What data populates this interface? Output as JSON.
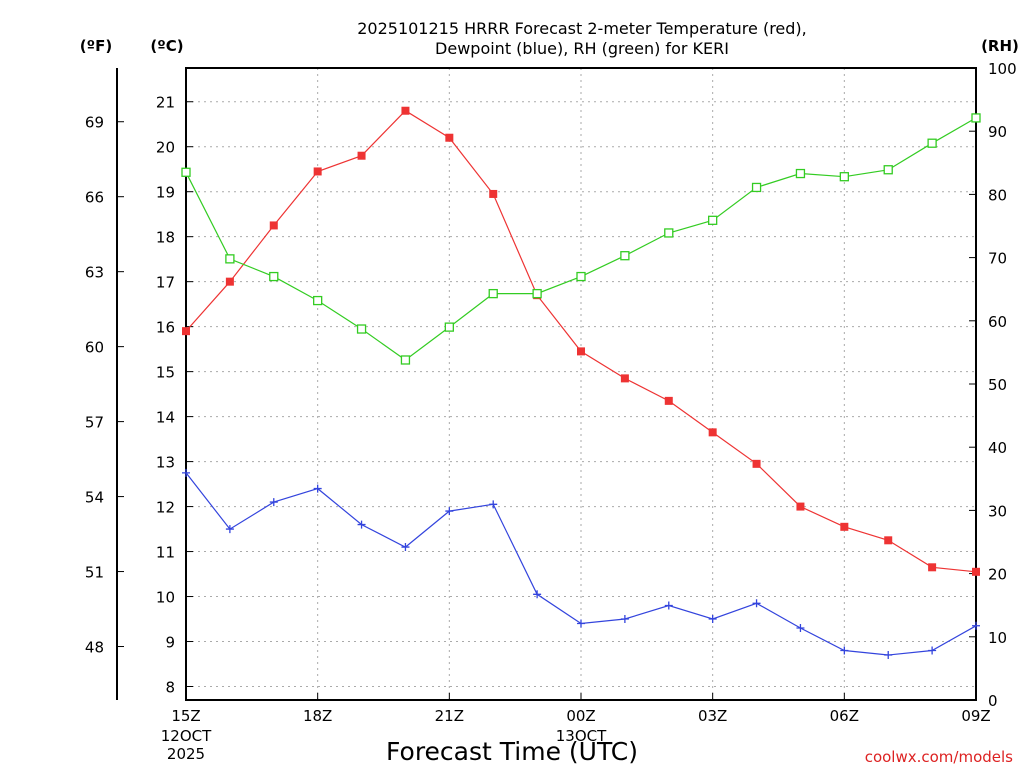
{
  "chart_data": {
    "type": "line",
    "title": [
      "2025101215 HRRR Forecast 2-meter Temperature (red),",
      "Dewpoint (blue), RH (green) for KERI"
    ],
    "xlabel": "Forecast Time (UTC)",
    "credit": "coolwx.com/models",
    "x_hours": [
      0,
      1,
      2,
      3,
      4,
      5,
      6,
      7,
      8,
      9,
      10,
      11,
      12,
      13,
      14,
      15,
      16,
      17,
      18
    ],
    "x_ticks": [
      {
        "hour": 0,
        "label": "15Z",
        "date_lines": [
          "12OCT",
          "2025"
        ]
      },
      {
        "hour": 3,
        "label": "18Z",
        "date_lines": []
      },
      {
        "hour": 6,
        "label": "21Z",
        "date_lines": []
      },
      {
        "hour": 9,
        "label": "00Z",
        "date_lines": [
          "13OCT"
        ]
      },
      {
        "hour": 12,
        "label": "03Z",
        "date_lines": []
      },
      {
        "hour": 15,
        "label": "06Z",
        "date_lines": []
      },
      {
        "hour": 18,
        "label": "09Z",
        "date_lines": []
      }
    ],
    "celsius_axis": {
      "unit": "(ºC)",
      "ylim": [
        7.7,
        21.75
      ],
      "ticks": [
        8,
        9,
        10,
        11,
        12,
        13,
        14,
        15,
        16,
        17,
        18,
        19,
        20,
        21
      ]
    },
    "fahrenheit_axis": {
      "unit": "(ºF)",
      "ticks": [
        48,
        51,
        54,
        57,
        60,
        63,
        66,
        69
      ]
    },
    "rh_axis": {
      "unit": "(RH)",
      "ylim": [
        0,
        100
      ],
      "ticks": [
        0,
        10,
        20,
        30,
        40,
        50,
        60,
        70,
        80,
        90,
        100
      ]
    },
    "series": [
      {
        "name": "Temperature",
        "axis": "celsius",
        "color": "#ee3333",
        "marker": "filled-square",
        "values": [
          15.9,
          17.0,
          18.25,
          19.45,
          19.8,
          20.8,
          20.2,
          18.95,
          16.7,
          15.45,
          14.85,
          14.35,
          13.65,
          12.95,
          12.0,
          11.55,
          11.25,
          10.65,
          10.55
        ]
      },
      {
        "name": "Dewpoint",
        "axis": "celsius",
        "color": "#3344dd",
        "marker": "plus",
        "values": [
          12.75,
          11.5,
          12.1,
          12.4,
          11.6,
          11.1,
          11.9,
          12.05,
          10.05,
          9.4,
          9.5,
          9.8,
          9.5,
          9.85,
          9.3,
          8.8,
          8.7,
          8.8,
          9.35
        ]
      },
      {
        "name": "RH",
        "axis": "rh",
        "color": "#33cc22",
        "marker": "open-square",
        "values": [
          83.5,
          69.8,
          67.0,
          63.2,
          58.7,
          53.8,
          59.0,
          64.3,
          64.3,
          67.0,
          70.3,
          73.9,
          75.9,
          81.1,
          83.3,
          82.8,
          83.9,
          88.1,
          92.1
        ]
      }
    ]
  }
}
